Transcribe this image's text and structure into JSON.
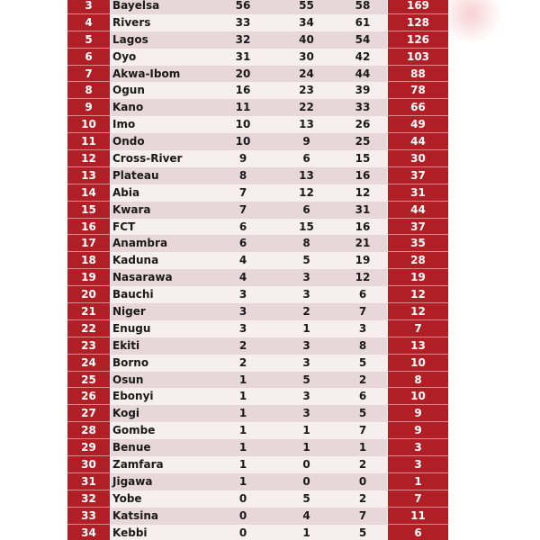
{
  "table": {
    "rows": [
      {
        "rank": "3",
        "state": "Bayelsa",
        "a": "56",
        "b": "55",
        "c": "58",
        "total": "169"
      },
      {
        "rank": "4",
        "state": "Rivers",
        "a": "33",
        "b": "34",
        "c": "61",
        "total": "128"
      },
      {
        "rank": "5",
        "state": "Lagos",
        "a": "32",
        "b": "40",
        "c": "54",
        "total": "126"
      },
      {
        "rank": "6",
        "state": "Oyo",
        "a": "31",
        "b": "30",
        "c": "42",
        "total": "103"
      },
      {
        "rank": "7",
        "state": "Akwa-Ibom",
        "a": "20",
        "b": "24",
        "c": "44",
        "total": "88"
      },
      {
        "rank": "8",
        "state": "Ogun",
        "a": "16",
        "b": "23",
        "c": "39",
        "total": "78"
      },
      {
        "rank": "9",
        "state": "Kano",
        "a": "11",
        "b": "22",
        "c": "33",
        "total": "66"
      },
      {
        "rank": "10",
        "state": "Imo",
        "a": "10",
        "b": "13",
        "c": "26",
        "total": "49"
      },
      {
        "rank": "11",
        "state": "Ondo",
        "a": "10",
        "b": "9",
        "c": "25",
        "total": "44"
      },
      {
        "rank": "12",
        "state": "Cross-River",
        "a": "9",
        "b": "6",
        "c": "15",
        "total": "30"
      },
      {
        "rank": "13",
        "state": "Plateau",
        "a": "8",
        "b": "13",
        "c": "16",
        "total": "37"
      },
      {
        "rank": "14",
        "state": "Abia",
        "a": "7",
        "b": "12",
        "c": "12",
        "total": "31"
      },
      {
        "rank": "15",
        "state": "Kwara",
        "a": "7",
        "b": "6",
        "c": "31",
        "total": "44"
      },
      {
        "rank": "16",
        "state": "FCT",
        "a": "6",
        "b": "15",
        "c": "16",
        "total": "37"
      },
      {
        "rank": "17",
        "state": "Anambra",
        "a": "6",
        "b": "8",
        "c": "21",
        "total": "35"
      },
      {
        "rank": "18",
        "state": "Kaduna",
        "a": "4",
        "b": "5",
        "c": "19",
        "total": "28"
      },
      {
        "rank": "19",
        "state": "Nasarawa",
        "a": "4",
        "b": "3",
        "c": "12",
        "total": "19"
      },
      {
        "rank": "20",
        "state": "Bauchi",
        "a": "3",
        "b": "3",
        "c": "6",
        "total": "12"
      },
      {
        "rank": "21",
        "state": "Niger",
        "a": "3",
        "b": "2",
        "c": "7",
        "total": "12"
      },
      {
        "rank": "22",
        "state": "Enugu",
        "a": "3",
        "b": "1",
        "c": "3",
        "total": "7"
      },
      {
        "rank": "23",
        "state": "Ekiti",
        "a": "2",
        "b": "3",
        "c": "8",
        "total": "13"
      },
      {
        "rank": "24",
        "state": "Borno",
        "a": "2",
        "b": "3",
        "c": "5",
        "total": "10"
      },
      {
        "rank": "25",
        "state": "Osun",
        "a": "1",
        "b": "5",
        "c": "2",
        "total": "8"
      },
      {
        "rank": "26",
        "state": "Ebonyi",
        "a": "1",
        "b": "3",
        "c": "6",
        "total": "10"
      },
      {
        "rank": "27",
        "state": "Kogi",
        "a": "1",
        "b": "3",
        "c": "5",
        "total": "9"
      },
      {
        "rank": "28",
        "state": "Gombe",
        "a": "1",
        "b": "1",
        "c": "7",
        "total": "9"
      },
      {
        "rank": "29",
        "state": "Benue",
        "a": "1",
        "b": "1",
        "c": "1",
        "total": "3"
      },
      {
        "rank": "30",
        "state": "Zamfara",
        "a": "1",
        "b": "0",
        "c": "2",
        "total": "3"
      },
      {
        "rank": "31",
        "state": "Jigawa",
        "a": "1",
        "b": "0",
        "c": "0",
        "total": "1"
      },
      {
        "rank": "32",
        "state": "Yobe",
        "a": "0",
        "b": "5",
        "c": "2",
        "total": "7"
      },
      {
        "rank": "33",
        "state": "Katsina",
        "a": "0",
        "b": "4",
        "c": "7",
        "total": "11"
      },
      {
        "rank": "34",
        "state": "Kebbi",
        "a": "0",
        "b": "1",
        "c": "5",
        "total": "6"
      }
    ]
  },
  "colors": {
    "accent_red": "#b01f26",
    "row_dark": "#e8d7d8",
    "row_light": "#f6eeef"
  }
}
